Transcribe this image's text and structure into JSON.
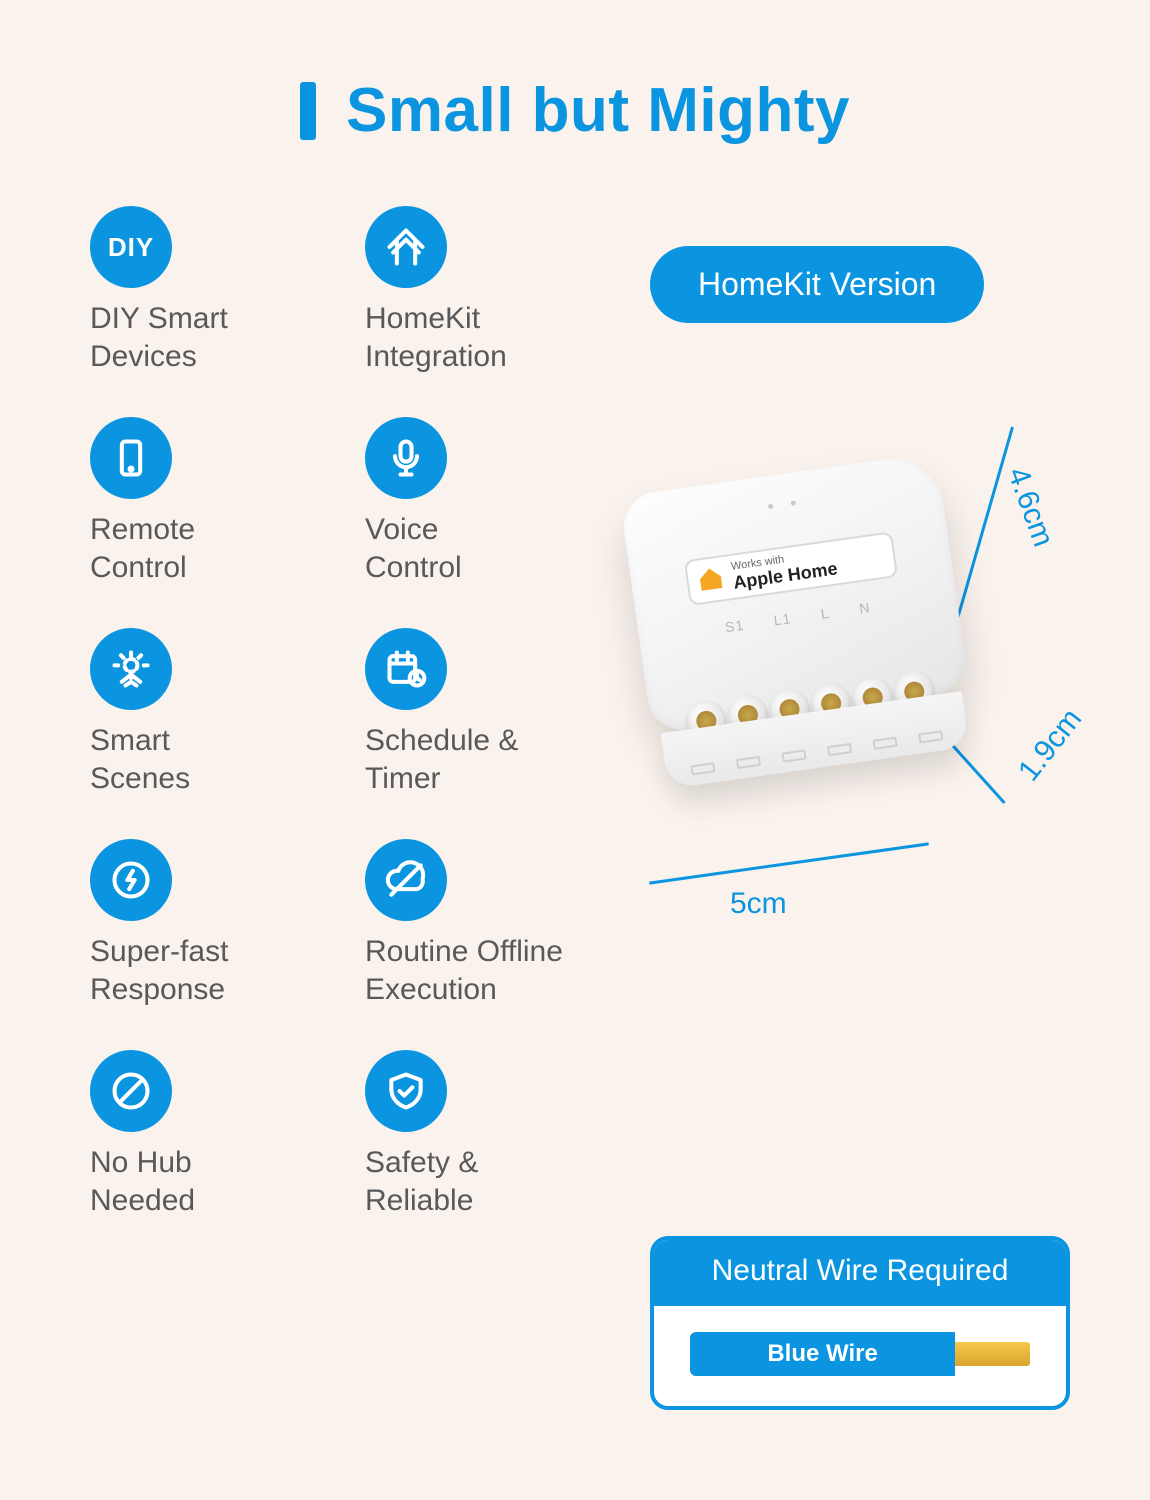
{
  "title": "Small but Mighty",
  "accent_color": "#0b95e0",
  "background_color": "#f9f2ed",
  "text_color": "#595959",
  "pill_label": "HomeKit Version",
  "features": [
    {
      "icon": "diy",
      "label": "DIY Smart\nDevices"
    },
    {
      "icon": "homekit",
      "label": "HomeKit\nIntegration"
    },
    {
      "icon": "remote",
      "label": "Remote\nControl"
    },
    {
      "icon": "voice",
      "label": "Voice\nControl"
    },
    {
      "icon": "scenes",
      "label": "Smart\nScenes"
    },
    {
      "icon": "schedule",
      "label": "Schedule &\nTimer"
    },
    {
      "icon": "fast",
      "label": "Super-fast\nResponse"
    },
    {
      "icon": "offline",
      "label": "Routine Offline\nExecution"
    },
    {
      "icon": "nohub",
      "label": "No Hub\nNeeded"
    },
    {
      "icon": "safety",
      "label": "Safety &\nReliable"
    }
  ],
  "device": {
    "badge_small": "Works with",
    "badge_big": "Apple Home",
    "terminals": [
      "S1",
      "L1",
      "L",
      "N"
    ],
    "dimensions": {
      "depth": "4.6cm",
      "height": "1.9cm",
      "width": "5cm"
    }
  },
  "wire_card": {
    "header": "Neutral Wire Required",
    "label": "Blue Wire",
    "blue_pct": 78,
    "blue_color": "#0b95e0",
    "copper_color_top": "#f5c94a",
    "copper_color_bottom": "#d8a530"
  },
  "typography": {
    "title_fontsize": 62,
    "feature_label_fontsize": 30,
    "pill_fontsize": 32,
    "dim_fontsize": 30,
    "wire_header_fontsize": 30
  }
}
